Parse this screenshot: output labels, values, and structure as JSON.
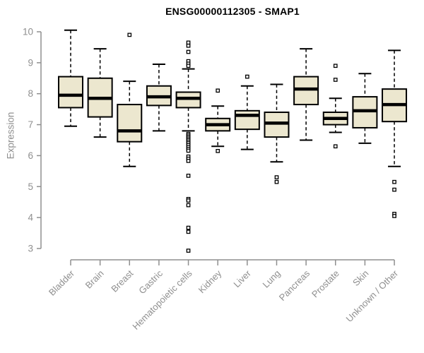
{
  "chart_data": {
    "type": "box",
    "title": "ENSG00000112305 - SMAP1",
    "xlabel": "",
    "ylabel": "Expression",
    "ylim": [
      3,
      10
    ],
    "yticks": [
      3,
      4,
      5,
      6,
      7,
      8,
      9,
      10
    ],
    "grid": false,
    "legend": "none",
    "categories": [
      "Bladder",
      "Brain",
      "Breast",
      "Gastric",
      "Hematopoietic cells",
      "Kidney",
      "Liver",
      "Lung",
      "Pancreas",
      "Prostate",
      "Skin",
      "Unknown / Other"
    ],
    "series": [
      {
        "category": "Bladder",
        "whisker_low": 6.95,
        "q1": 7.55,
        "median": 7.95,
        "q3": 8.55,
        "whisker_high": 10.05,
        "outliers": []
      },
      {
        "category": "Brain",
        "whisker_low": 6.6,
        "q1": 7.25,
        "median": 7.85,
        "q3": 8.5,
        "whisker_high": 9.45,
        "outliers": []
      },
      {
        "category": "Breast",
        "whisker_low": 5.65,
        "q1": 6.45,
        "median": 6.8,
        "q3": 7.65,
        "whisker_high": 8.4,
        "outliers": [
          9.9
        ]
      },
      {
        "category": "Gastric",
        "whisker_low": 6.8,
        "q1": 7.62,
        "median": 7.9,
        "q3": 8.25,
        "whisker_high": 8.95,
        "outliers": []
      },
      {
        "category": "Hematopoietic cells",
        "whisker_low": 6.8,
        "q1": 7.55,
        "median": 7.85,
        "q3": 8.05,
        "whisker_high": 8.8,
        "outliers": [
          9.65,
          9.55,
          9.35,
          9.05,
          8.97,
          8.9,
          6.7,
          6.65,
          6.6,
          6.55,
          6.5,
          6.45,
          6.4,
          6.34,
          6.28,
          6.22,
          6.16,
          5.97,
          5.9,
          5.83,
          5.35,
          4.6,
          4.55,
          4.4,
          3.67,
          3.54,
          2.93
        ]
      },
      {
        "category": "Kidney",
        "whisker_low": 6.3,
        "q1": 6.8,
        "median": 7.0,
        "q3": 7.2,
        "whisker_high": 7.6,
        "outliers": [
          8.1,
          6.15
        ]
      },
      {
        "category": "Liver",
        "whisker_low": 6.2,
        "q1": 6.85,
        "median": 7.3,
        "q3": 7.45,
        "whisker_high": 8.25,
        "outliers": [
          8.55
        ]
      },
      {
        "category": "Lung",
        "whisker_low": 5.8,
        "q1": 6.6,
        "median": 7.05,
        "q3": 7.4,
        "whisker_high": 8.3,
        "outliers": [
          5.3,
          5.15
        ]
      },
      {
        "category": "Pancreas",
        "whisker_low": 6.5,
        "q1": 7.65,
        "median": 8.15,
        "q3": 8.55,
        "whisker_high": 9.45,
        "outliers": []
      },
      {
        "category": "Prostate",
        "whisker_low": 6.75,
        "q1": 7.0,
        "median": 7.2,
        "q3": 7.4,
        "whisker_high": 7.85,
        "outliers": [
          8.9,
          8.45,
          6.3
        ]
      },
      {
        "category": "Skin",
        "whisker_low": 6.4,
        "q1": 6.9,
        "median": 7.45,
        "q3": 7.9,
        "whisker_high": 8.65,
        "outliers": []
      },
      {
        "category": "Unknown / Other",
        "whisker_low": 5.65,
        "q1": 7.1,
        "median": 7.65,
        "q3": 8.15,
        "whisker_high": 9.4,
        "outliers": [
          5.15,
          4.9,
          4.12,
          4.05
        ]
      }
    ],
    "colors": {
      "box_fill": "#ece7cf",
      "box_border": "#000000",
      "median": "#000000",
      "whisker": "#000000",
      "outlier": "#000000",
      "axis": "#8f8f8f",
      "title": "#000000",
      "background": "#ffffff"
    }
  }
}
